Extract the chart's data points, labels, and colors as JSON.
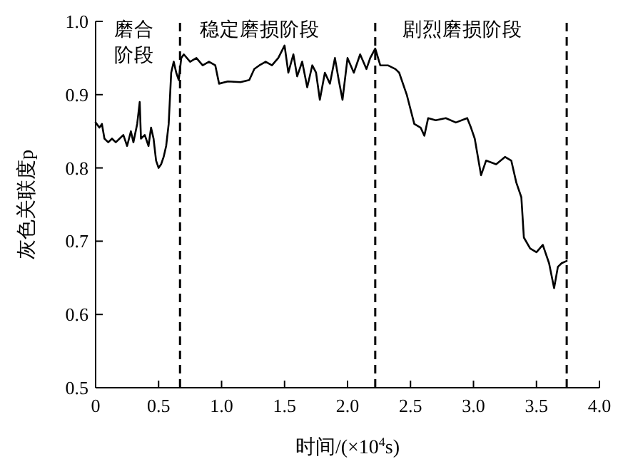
{
  "chart_data": {
    "type": "line",
    "xlabel": "时间/(×10$^{4}$s)",
    "ylabel": "灰色关联度p",
    "xlim": [
      0,
      4
    ],
    "ylim": [
      0.5,
      1.0
    ],
    "xticks": [
      0,
      {
        "value": 0.5,
        "label": "0.5"
      },
      {
        "value": 1,
        "label": "1.0"
      },
      {
        "value": 1.5,
        "label": "1.5"
      },
      {
        "value": 2,
        "label": "2.0"
      },
      {
        "value": 2.5,
        "label": "2.5"
      },
      {
        "value": 3,
        "label": "3.0"
      },
      {
        "value": 3.5,
        "label": "3.5"
      },
      {
        "value": 4,
        "label": "4.0"
      }
    ],
    "yticks": [
      0.5,
      0.6,
      0.7,
      0.8,
      0.9,
      {
        "value": 1,
        "label": "1.0"
      }
    ],
    "grid": false,
    "marker": "none",
    "line_style": "solid",
    "annotations": [
      "磨合阶段",
      "稳定磨损阶段",
      "剧烈磨损阶段"
    ],
    "ref_lines": [
      {
        "axis": "x",
        "value": 0.67,
        "color": "#000000",
        "line_style": "dashed"
      },
      {
        "axis": "x",
        "value": 2.22,
        "color": "#000000",
        "line_style": "dashed"
      },
      {
        "axis": "x",
        "value": 3.74,
        "color": "#000000",
        "line_style": "dashed"
      }
    ],
    "series": [
      {
        "color": "#000000",
        "x": [
          0,
          0.03,
          0.05,
          0.07,
          0.1,
          0.13,
          0.16,
          0.19,
          0.22,
          0.25,
          0.28,
          0.3,
          0.33,
          0.35,
          0.36,
          0.39,
          0.42,
          0.44,
          0.46,
          0.48,
          0.5,
          0.52,
          0.54,
          0.56,
          0.58,
          0.6,
          0.62,
          0.64,
          0.66,
          0.68,
          0.7,
          0.75,
          0.8,
          0.85,
          0.9,
          0.95,
          0.98,
          1.05,
          1.15,
          1.22,
          1.26,
          1.3,
          1.35,
          1.4,
          1.45,
          1.5,
          1.53,
          1.57,
          1.6,
          1.64,
          1.68,
          1.72,
          1.75,
          1.78,
          1.82,
          1.86,
          1.9,
          1.93,
          1.96,
          2.0,
          2.05,
          2.1,
          2.15,
          2.18,
          2.22,
          2.26,
          2.32,
          2.38,
          2.41,
          2.47,
          2.53,
          2.58,
          2.61,
          2.64,
          2.7,
          2.78,
          2.86,
          2.95,
          2.98,
          3.01,
          3.06,
          3.1,
          3.18,
          3.25,
          3.3,
          3.34,
          3.38,
          3.4,
          3.45,
          3.5,
          3.55,
          3.6,
          3.64,
          3.67,
          3.7,
          3.74
        ],
        "values": [
          0.862,
          0.855,
          0.86,
          0.84,
          0.835,
          0.84,
          0.835,
          0.84,
          0.845,
          0.83,
          0.85,
          0.835,
          0.86,
          0.89,
          0.84,
          0.845,
          0.83,
          0.855,
          0.84,
          0.81,
          0.8,
          0.805,
          0.815,
          0.83,
          0.86,
          0.93,
          0.945,
          0.93,
          0.92,
          0.95,
          0.955,
          0.945,
          0.95,
          0.94,
          0.945,
          0.94,
          0.915,
          0.918,
          0.917,
          0.92,
          0.935,
          0.94,
          0.945,
          0.94,
          0.95,
          0.967,
          0.93,
          0.955,
          0.925,
          0.945,
          0.91,
          0.94,
          0.93,
          0.893,
          0.93,
          0.915,
          0.95,
          0.92,
          0.893,
          0.95,
          0.93,
          0.955,
          0.935,
          0.95,
          0.963,
          0.94,
          0.94,
          0.935,
          0.93,
          0.9,
          0.86,
          0.855,
          0.844,
          0.868,
          0.865,
          0.868,
          0.862,
          0.868,
          0.855,
          0.84,
          0.79,
          0.81,
          0.805,
          0.815,
          0.81,
          0.78,
          0.76,
          0.705,
          0.69,
          0.685,
          0.695,
          0.67,
          0.636,
          0.665,
          0.67,
          0.673
        ]
      }
    ]
  }
}
